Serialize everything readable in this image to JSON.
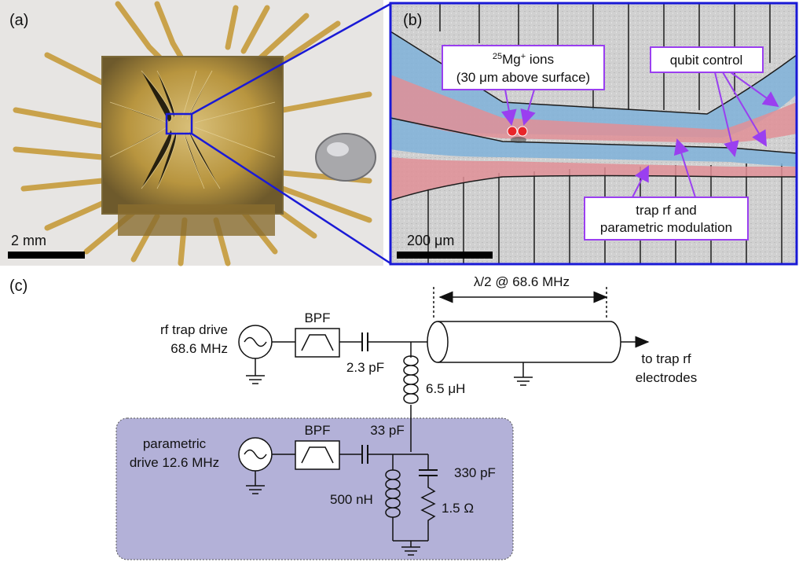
{
  "panels": {
    "a": {
      "label": "(a)",
      "scale_bar": "2 mm"
    },
    "b": {
      "label": "(b)",
      "scale_bar": "200 μm",
      "ions_callout": {
        "sup": "25",
        "line1": "Mg",
        "ion_sup": "+",
        "line1_end": " ions",
        "line2": "(30 μm above surface)"
      },
      "qubit_callout": "qubit control",
      "rf_callout": {
        "line1": "trap rf and",
        "line2": "parametric modulation"
      }
    },
    "c": {
      "label": "(c)",
      "half_wave": "λ/2 @ 68.6 MHz",
      "rf_source": {
        "line1": "rf trap drive",
        "line2": "68.6 MHz"
      },
      "bpf1": "BPF",
      "c1": "2.3 pF",
      "l1": "6.5 μH",
      "output": {
        "line1": "to trap rf",
        "line2": "electrodes"
      },
      "param_source": {
        "line1": "parametric",
        "line2": "drive 12.6 MHz"
      },
      "bpf2": "BPF",
      "c2": "33 pF",
      "c3": "330 pF",
      "l2": "500 nH",
      "r1": "1.5 Ω"
    }
  },
  "colors": {
    "callout_border": "#9a3ff0",
    "zoom_lines": "#1a1ad6",
    "blue_electrode": "#7fb2d9",
    "red_electrode": "#e08f96",
    "param_box": "#b3b1d8"
  }
}
